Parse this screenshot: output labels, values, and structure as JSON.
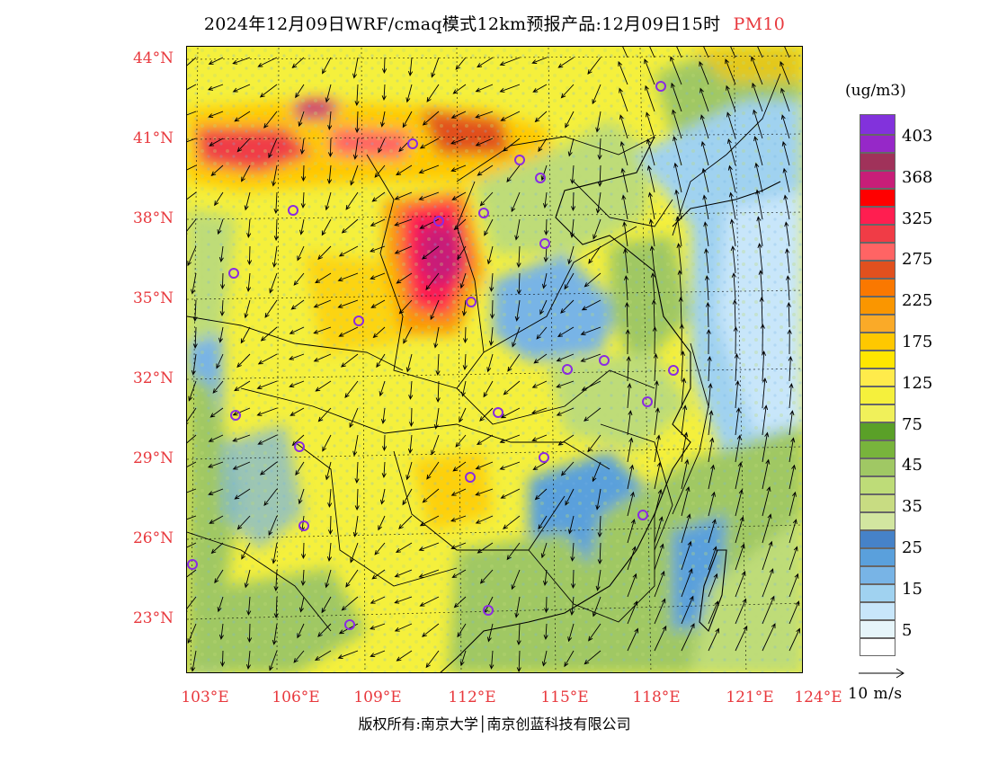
{
  "title": {
    "main": "2024年12月09日WRF/cmaq模式12km预报产品:12月09日15时",
    "pollutant": "PM10"
  },
  "latitudes": [
    "44°N",
    "41°N",
    "38°N",
    "35°N",
    "32°N",
    "29°N",
    "26°N",
    "23°N"
  ],
  "longitudes": [
    "103°E",
    "106°E",
    "109°E",
    "112°E",
    "115°E",
    "118°E",
    "121°E",
    "124°E"
  ],
  "copyright": "版权所有:南京大学│南京创蓝科技有限公司",
  "legend": {
    "unit": "(ug/m3)",
    "colors": [
      "#8232dc",
      "#9628c8",
      "#a0325a",
      "#c81e78",
      "#ff0000",
      "#ff1e50",
      "#f03c46",
      "#ff6464",
      "#e1501e",
      "#fa7800",
      "#fa9600",
      "#faaa28",
      "#ffc800",
      "#ffe600",
      "#ffeb4b",
      "#f5f03c",
      "#f0f05a",
      "#5aa028",
      "#78b43c",
      "#a0c864",
      "#bedc78",
      "#c8dc82",
      "#d2e6a0",
      "#4682c8",
      "#5aa0dc",
      "#78b4e6",
      "#a0d2f0",
      "#c8e6fa",
      "#e6f5fa",
      "#ffffff"
    ],
    "labels": [
      "403",
      "368",
      "325",
      "275",
      "225",
      "175",
      "125",
      "75",
      "45",
      "35",
      "25",
      "15",
      "5"
    ]
  },
  "vector_reference": "10 m/s",
  "city_markers": 24,
  "colors": {
    "accent": "#e8383d",
    "marker": "#8a2be2"
  }
}
